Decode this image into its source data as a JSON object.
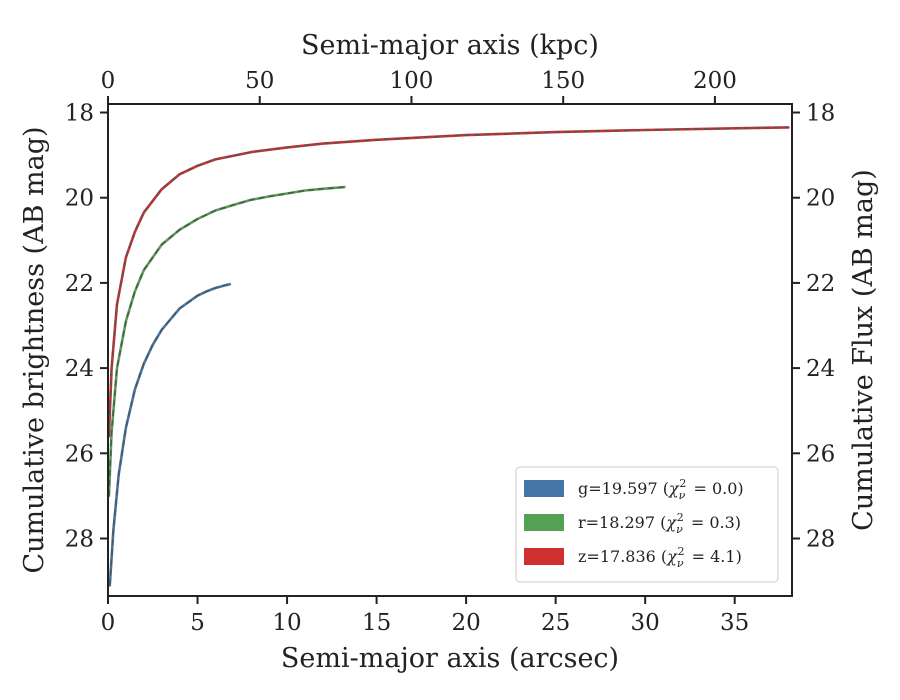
{
  "chart_data": {
    "type": "line",
    "xlabel": "Semi-major axis (arcsec)",
    "xlabel_top": "Semi-major axis (kpc)",
    "ylabel": "Cumulative brightness (AB mag)",
    "ylabel_right": "Cumulative Flux (AB mag)",
    "xlim": [
      0,
      38.2
    ],
    "xlim_top": [
      0,
      225.4
    ],
    "ylim": [
      29.35,
      17.8
    ],
    "y_inverted": true,
    "x_ticks": [
      0,
      5,
      10,
      15,
      20,
      25,
      30,
      35
    ],
    "x_ticks_top": [
      0,
      50,
      100,
      150,
      200
    ],
    "y_ticks": [
      18,
      20,
      22,
      24,
      26,
      28
    ],
    "legend_position": "lower-right",
    "series": [
      {
        "name": "g=19.597",
        "chi2": "0.0",
        "color": "#4575a8",
        "x": [
          0.1,
          0.3,
          0.6,
          1.0,
          1.5,
          2.0,
          2.5,
          3.0,
          3.5,
          4.0,
          4.5,
          5.0,
          5.5,
          6.0,
          6.5,
          6.8
        ],
        "y": [
          29.1,
          27.8,
          26.5,
          25.4,
          24.5,
          23.9,
          23.45,
          23.1,
          22.85,
          22.6,
          22.45,
          22.3,
          22.2,
          22.12,
          22.06,
          22.03
        ]
      },
      {
        "name": "r=18.297",
        "chi2": "0.3",
        "color": "#56a054",
        "x": [
          0.05,
          0.2,
          0.5,
          1.0,
          1.5,
          2.0,
          3.0,
          4.0,
          5.0,
          6.0,
          7.0,
          8.0,
          9.0,
          10.0,
          11.0,
          12.0,
          13.2
        ],
        "y": [
          27.0,
          25.5,
          24.0,
          22.9,
          22.2,
          21.7,
          21.1,
          20.75,
          20.5,
          20.3,
          20.17,
          20.05,
          19.97,
          19.9,
          19.83,
          19.79,
          19.75
        ]
      },
      {
        "name": "z=17.836",
        "chi2": "4.1",
        "color": "#cf2f2e",
        "x": [
          0.05,
          0.2,
          0.5,
          1.0,
          1.5,
          2.0,
          3.0,
          4.0,
          5.0,
          6.0,
          8.0,
          10.0,
          12.0,
          15.0,
          20.0,
          25.0,
          30.0,
          35.0,
          38.0
        ],
        "y": [
          25.6,
          24.0,
          22.5,
          21.4,
          20.8,
          20.35,
          19.8,
          19.45,
          19.25,
          19.1,
          18.93,
          18.82,
          18.73,
          18.64,
          18.53,
          18.46,
          18.41,
          18.37,
          18.35
        ]
      }
    ]
  }
}
